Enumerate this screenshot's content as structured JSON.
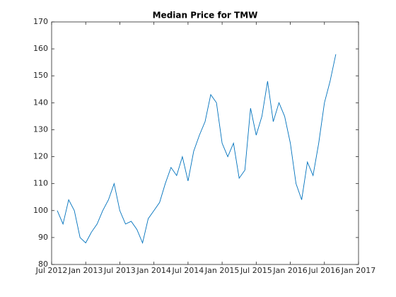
{
  "chart_data": {
    "type": "line",
    "title": "Median Price for TMW",
    "x": [
      "2012-08",
      "2012-09",
      "2012-10",
      "2012-11",
      "2012-12",
      "2013-01",
      "2013-02",
      "2013-03",
      "2013-04",
      "2013-05",
      "2013-06",
      "2013-07",
      "2013-08",
      "2013-09",
      "2013-10",
      "2013-11",
      "2013-12",
      "2014-01",
      "2014-02",
      "2014-03",
      "2014-04",
      "2014-05",
      "2014-06",
      "2014-07",
      "2014-08",
      "2014-09",
      "2014-10",
      "2014-11",
      "2014-12",
      "2015-01",
      "2015-02",
      "2015-03",
      "2015-04",
      "2015-05",
      "2015-06",
      "2015-07",
      "2015-08",
      "2015-09",
      "2015-10",
      "2015-11",
      "2015-12",
      "2016-01",
      "2016-02",
      "2016-03",
      "2016-04",
      "2016-05",
      "2016-06",
      "2016-07",
      "2016-08",
      "2016-09"
    ],
    "series": [
      {
        "color": "#0072bd",
        "values": [
          100,
          95,
          104,
          100,
          90,
          88,
          92,
          95,
          100,
          104,
          110,
          100,
          95,
          96,
          93,
          88,
          97,
          100,
          103,
          110,
          116,
          113,
          120,
          111,
          122,
          128,
          133,
          143,
          140,
          125,
          120,
          125,
          112,
          115,
          138,
          128,
          135,
          148,
          133,
          140,
          135,
          125,
          110,
          104,
          118,
          113,
          125,
          140,
          148,
          158
        ]
      }
    ],
    "xlim": [
      "2012-07",
      "2017-01"
    ],
    "xticks": [
      {
        "value": "2012-07",
        "label": "Jul 2012"
      },
      {
        "value": "2013-01",
        "label": "Jan 2013"
      },
      {
        "value": "2013-07",
        "label": "Jul 2013"
      },
      {
        "value": "2014-01",
        "label": "Jan 2014"
      },
      {
        "value": "2014-07",
        "label": "Jul 2014"
      },
      {
        "value": "2015-01",
        "label": "Jan 2015"
      },
      {
        "value": "2015-07",
        "label": "Jul 2015"
      },
      {
        "value": "2016-01",
        "label": "Jan 2016"
      },
      {
        "value": "2016-07",
        "label": "Jul 2016"
      },
      {
        "value": "2017-01",
        "label": "Jan 2017"
      }
    ],
    "ylim": [
      80,
      170
    ],
    "yticks": [
      80,
      90,
      100,
      110,
      120,
      130,
      140,
      150,
      160,
      170
    ]
  }
}
